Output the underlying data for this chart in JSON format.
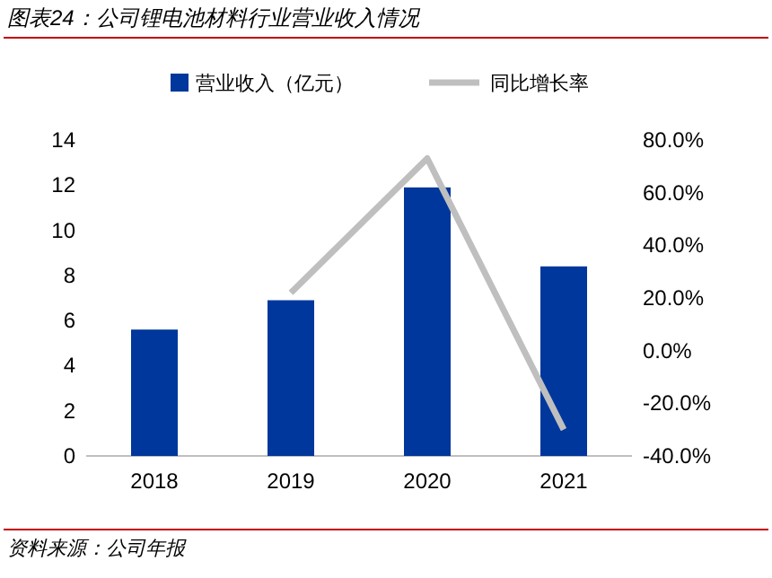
{
  "chart_data": {
    "type": "bar",
    "title": "图表24：公司锂电池材料行业营业收入情况",
    "categories": [
      "2018",
      "2019",
      "2020",
      "2021"
    ],
    "series": [
      {
        "name": "营业收入（亿元）",
        "color": "#00379c",
        "values": [
          5.6,
          6.9,
          11.9,
          8.4
        ]
      },
      {
        "name": "同比增长率",
        "type": "line",
        "axis": "y2",
        "color": "#bfbfbf",
        "values": [
          null,
          22,
          73,
          -30
        ]
      }
    ],
    "ylim": [
      0,
      14
    ],
    "yticks": [
      0,
      2,
      4,
      6,
      8,
      10,
      12,
      14
    ],
    "y2lim": [
      -40,
      80
    ],
    "y2ticks": [
      {
        "value": -40,
        "label": "-40.0%"
      },
      {
        "value": -20,
        "label": "-20.0%"
      },
      {
        "value": 0,
        "label": "0.0%"
      },
      {
        "value": 20,
        "label": "20.0%"
      },
      {
        "value": 40,
        "label": "40.0%"
      },
      {
        "value": 60,
        "label": "60.0%"
      },
      {
        "value": 80,
        "label": "80.0%"
      }
    ],
    "legend": "top",
    "grid": false,
    "annotations": [
      "资料来源：公司年报"
    ]
  }
}
